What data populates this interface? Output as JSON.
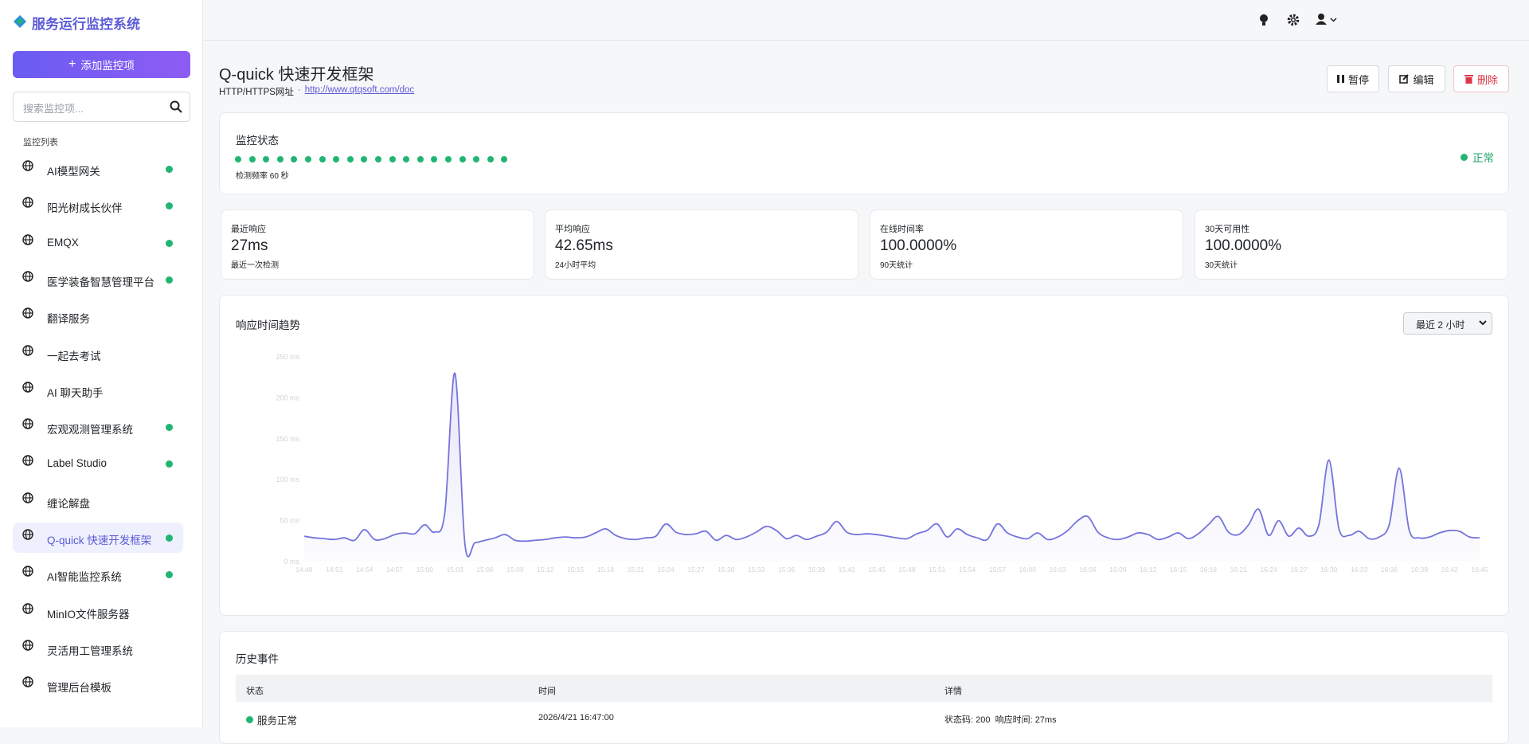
{
  "sidebar": {
    "brand": "服务运行监控系统",
    "add_button": "添加监控项",
    "search_placeholder": "搜索监控项...",
    "list_title": "监控列表",
    "active_index": 10,
    "items": [
      {
        "name": "AI模型网关",
        "online": true
      },
      {
        "name": "阳光树成长伙伴",
        "online": true
      },
      {
        "name": "EMQX",
        "online": true
      },
      {
        "name": "医学装备智慧管理平台",
        "online": true
      },
      {
        "name": "翻译服务",
        "online": false
      },
      {
        "name": "一起去考试",
        "online": false
      },
      {
        "name": "AI 聊天助手",
        "online": false
      },
      {
        "name": "宏观观测管理系统",
        "online": true
      },
      {
        "name": "Label Studio",
        "online": true
      },
      {
        "name": "缠论解盘",
        "online": false
      },
      {
        "name": "Q-quick 快速开发框架",
        "online": true
      },
      {
        "name": "AI智能监控系统",
        "online": true
      },
      {
        "name": "MinIO文件服务器",
        "online": false
      },
      {
        "name": "灵活用工管理系统",
        "online": false
      },
      {
        "name": "管理后台模板",
        "online": false
      }
    ]
  },
  "detail": {
    "title": "Q-quick 快速开发框架",
    "type_label": "HTTP/HTTPS网址",
    "separator": "·",
    "url": "http://www.qtqsoft.com/doc",
    "buttons": [
      "暂停",
      "编辑",
      "删除"
    ],
    "status_card": {
      "title": "监控状态",
      "interval": "检测频率 60 秒",
      "status": "正常"
    },
    "stats": [
      {
        "label": "最近响应",
        "value": "27ms",
        "note": "最近一次检测"
      },
      {
        "label": "平均响应",
        "value": "42.65ms",
        "note": "24小时平均"
      },
      {
        "label": "在线时间率",
        "value": "100.0000%",
        "note": "90天统计"
      },
      {
        "label": "30天可用性",
        "value": "100.0000%",
        "note": "30天统计"
      }
    ],
    "chart_card": {
      "title": "响应时间趋势",
      "range_select": "最近 2 小时"
    },
    "history": {
      "title": "历史事件",
      "columns": [
        "状态",
        "时间",
        "详情"
      ],
      "rows": [
        [
          "服务正常",
          "2026/4/21 16:47:00",
          "状态码: 200  响应时间: 27ms"
        ]
      ]
    }
  },
  "chart_data": {
    "type": "line",
    "color": "#7474dc",
    "grid": false,
    "ylim": [
      0,
      250
    ],
    "yticks": [
      {
        "value": 0,
        "label": "0 ms"
      },
      {
        "value": 50,
        "label": "50 ms"
      },
      {
        "value": 100,
        "label": "100 ms"
      },
      {
        "value": 150,
        "label": "150 ms"
      },
      {
        "value": 200,
        "label": "200 ms"
      },
      {
        "value": 250,
        "label": "250 ms"
      }
    ],
    "categories": [
      "14:48",
      null,
      null,
      "14:51",
      null,
      null,
      "14:54",
      null,
      null,
      "14:57",
      null,
      null,
      "15:00",
      null,
      null,
      "15:03",
      null,
      null,
      "15:06",
      null,
      null,
      "15:09",
      null,
      null,
      "15:12",
      null,
      null,
      "15:15",
      null,
      null,
      "15:18",
      null,
      null,
      "15:21",
      null,
      null,
      "15:24",
      null,
      null,
      "15:27",
      null,
      null,
      "15:30",
      null,
      null,
      "15:33",
      null,
      null,
      "15:36",
      null,
      null,
      "15:39",
      null,
      null,
      "15:42",
      null,
      null,
      "15:45",
      null,
      null,
      "15:48",
      null,
      null,
      "15:51",
      null,
      null,
      "15:54",
      null,
      null,
      "15:57",
      null,
      null,
      "16:00",
      null,
      null,
      "16:03",
      null,
      null,
      "16:06",
      null,
      null,
      "16:09",
      null,
      null,
      "16:12",
      null,
      null,
      "16:15",
      null,
      null,
      "16:18",
      null,
      null,
      "16:21",
      null,
      null,
      "16:24",
      null,
      null,
      "16:27",
      null,
      null,
      "16:30",
      null,
      null,
      "16:33",
      null,
      null,
      "16:36",
      null,
      null,
      "16:39",
      null,
      null,
      "16:42",
      null,
      null,
      "16:45"
    ],
    "values": [
      31,
      29,
      28,
      27,
      29,
      26,
      39,
      27,
      28,
      33,
      35,
      34,
      45,
      36,
      60,
      230,
      21,
      23,
      26,
      29,
      33,
      26,
      25,
      26,
      27,
      29,
      30,
      29,
      30,
      35,
      40,
      32,
      28,
      27,
      29,
      31,
      46,
      36,
      33,
      34,
      37,
      26,
      32,
      27,
      30,
      36,
      43,
      38,
      28,
      32,
      27,
      31,
      36,
      49,
      36,
      33,
      34,
      33,
      31,
      29,
      28,
      34,
      38,
      46,
      30,
      40,
      33,
      29,
      27,
      46,
      35,
      30,
      28,
      35,
      27,
      30,
      38,
      50,
      55,
      36,
      29,
      27,
      30,
      35,
      33,
      27,
      30,
      35,
      28,
      34,
      45,
      55,
      36,
      33,
      45,
      64,
      32,
      50,
      31,
      41,
      31,
      45,
      124,
      40,
      32,
      37,
      28,
      30,
      45,
      114,
      38,
      29,
      30,
      35,
      38,
      37,
      30,
      29
    ]
  }
}
